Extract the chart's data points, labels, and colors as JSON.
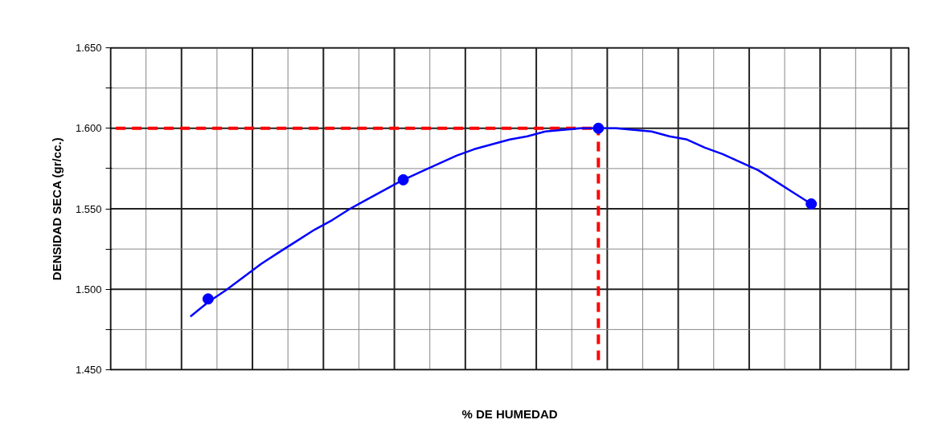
{
  "chart_data": {
    "type": "line",
    "xlabel": "% DE HUMEDAD",
    "ylabel": "DENSIDAD SECA (gr/cc.)",
    "categories": [
      null,
      null,
      null,
      null,
      null,
      null,
      null,
      null,
      null,
      null,
      null,
      null,
      null,
      null,
      null,
      null,
      null,
      null,
      null,
      null,
      null,
      null,
      null,
      null,
      null,
      null,
      null,
      null,
      null,
      null,
      null,
      null,
      null,
      null,
      null,
      null,
      null,
      null,
      null,
      null,
      null,
      null,
      null,
      null,
      null
    ],
    "ylim": [
      1.45,
      1.65
    ],
    "yticks": [
      {
        "value": 1.45,
        "label": "1.450"
      },
      {
        "value": 1.475,
        "label": null
      },
      {
        "value": 1.5,
        "label": "1.500"
      },
      {
        "value": 1.525,
        "label": null
      },
      {
        "value": 1.55,
        "label": "1.550"
      },
      {
        "value": 1.575,
        "label": null
      },
      {
        "value": 1.6,
        "label": "1.600"
      },
      {
        "value": 1.625,
        "label": null
      },
      {
        "value": 1.65,
        "label": "1.650"
      }
    ],
    "grid": true,
    "ref_lines": [
      {
        "axis": "y",
        "value": 1.6,
        "color": "#ff0000",
        "line_style": "dashed"
      }
    ],
    "series": [
      {
        "color": "#0000ff",
        "marker": "none",
        "values": [
          null,
          null,
          null,
          null,
          1.483,
          1.492,
          1.4994,
          1.5076,
          1.5158,
          1.523,
          1.53,
          1.537,
          1.543,
          1.55,
          1.556,
          1.562,
          1.568,
          1.573,
          1.578,
          1.583,
          1.587,
          1.59,
          1.593,
          1.595,
          1.598,
          1.599,
          1.6,
          1.6,
          1.6,
          1.599,
          1.598,
          1.595,
          1.593,
          1.588,
          1.584,
          1.579,
          1.574,
          1.567,
          1.56,
          1.553,
          null,
          null,
          null,
          null,
          null
        ]
      },
      {
        "type": "scatter",
        "color": "#0000ff",
        "marker": "circle",
        "values": [
          null,
          null,
          null,
          null,
          null,
          1.494,
          null,
          null,
          null,
          null,
          null,
          null,
          null,
          null,
          null,
          null,
          1.568,
          null,
          null,
          null,
          null,
          null,
          null,
          null,
          null,
          null,
          null,
          1.6,
          null,
          null,
          null,
          null,
          null,
          null,
          null,
          null,
          null,
          null,
          null,
          1.553,
          null,
          null,
          null,
          null,
          null
        ]
      }
    ]
  }
}
